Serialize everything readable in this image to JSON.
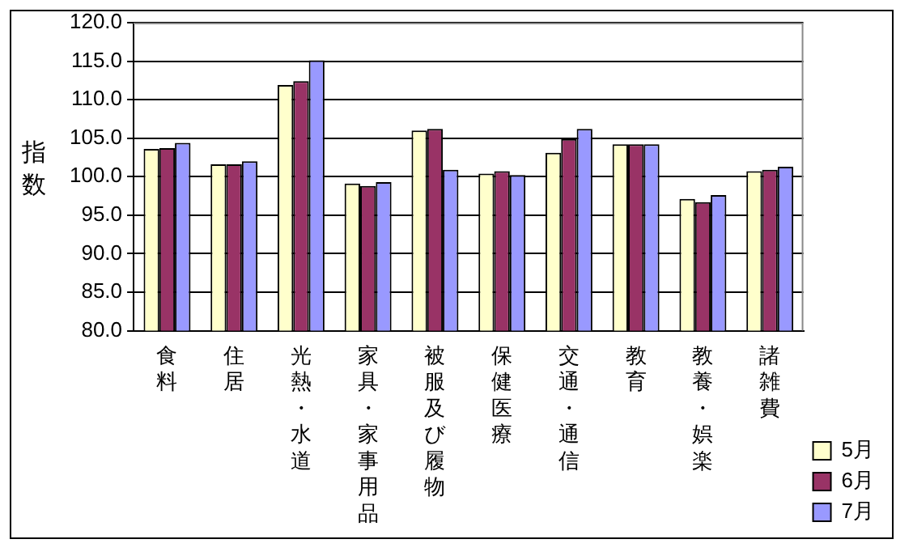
{
  "chart_data": {
    "type": "bar",
    "ylabel": "指数",
    "categories": [
      "食料",
      "住居",
      "光熱・水道",
      "家具・家事用品",
      "被服及び履物",
      "保健医療",
      "交通・通信",
      "教育",
      "教養・娯楽",
      "諸雑費"
    ],
    "series": [
      {
        "name": "5月",
        "color": "#ffffcc",
        "values": [
          103.6,
          101.6,
          111.9,
          99.1,
          106.0,
          100.4,
          103.1,
          104.2,
          97.1,
          100.7
        ]
      },
      {
        "name": "6月",
        "color": "#993366",
        "values": [
          103.7,
          101.6,
          112.4,
          98.8,
          106.2,
          100.7,
          104.9,
          104.2,
          96.7,
          100.9
        ]
      },
      {
        "name": "7月",
        "color": "#9999ff",
        "values": [
          104.4,
          102.0,
          115.1,
          99.3,
          100.9,
          100.2,
          106.2,
          104.2,
          97.6,
          101.3
        ]
      }
    ],
    "ylim": [
      80,
      120
    ],
    "yticks": [
      {
        "value": 80,
        "label": "80.0"
      },
      {
        "value": 85,
        "label": "85.0"
      },
      {
        "value": 90,
        "label": "90.0"
      },
      {
        "value": 95,
        "label": "95.0"
      },
      {
        "value": 100,
        "label": "100.0"
      },
      {
        "value": 105,
        "label": "105.0"
      },
      {
        "value": 110,
        "label": "110.0"
      },
      {
        "value": 115,
        "label": "115.0"
      },
      {
        "value": 120,
        "label": "120.0"
      }
    ],
    "grid": "y",
    "legend": "bottom right"
  }
}
